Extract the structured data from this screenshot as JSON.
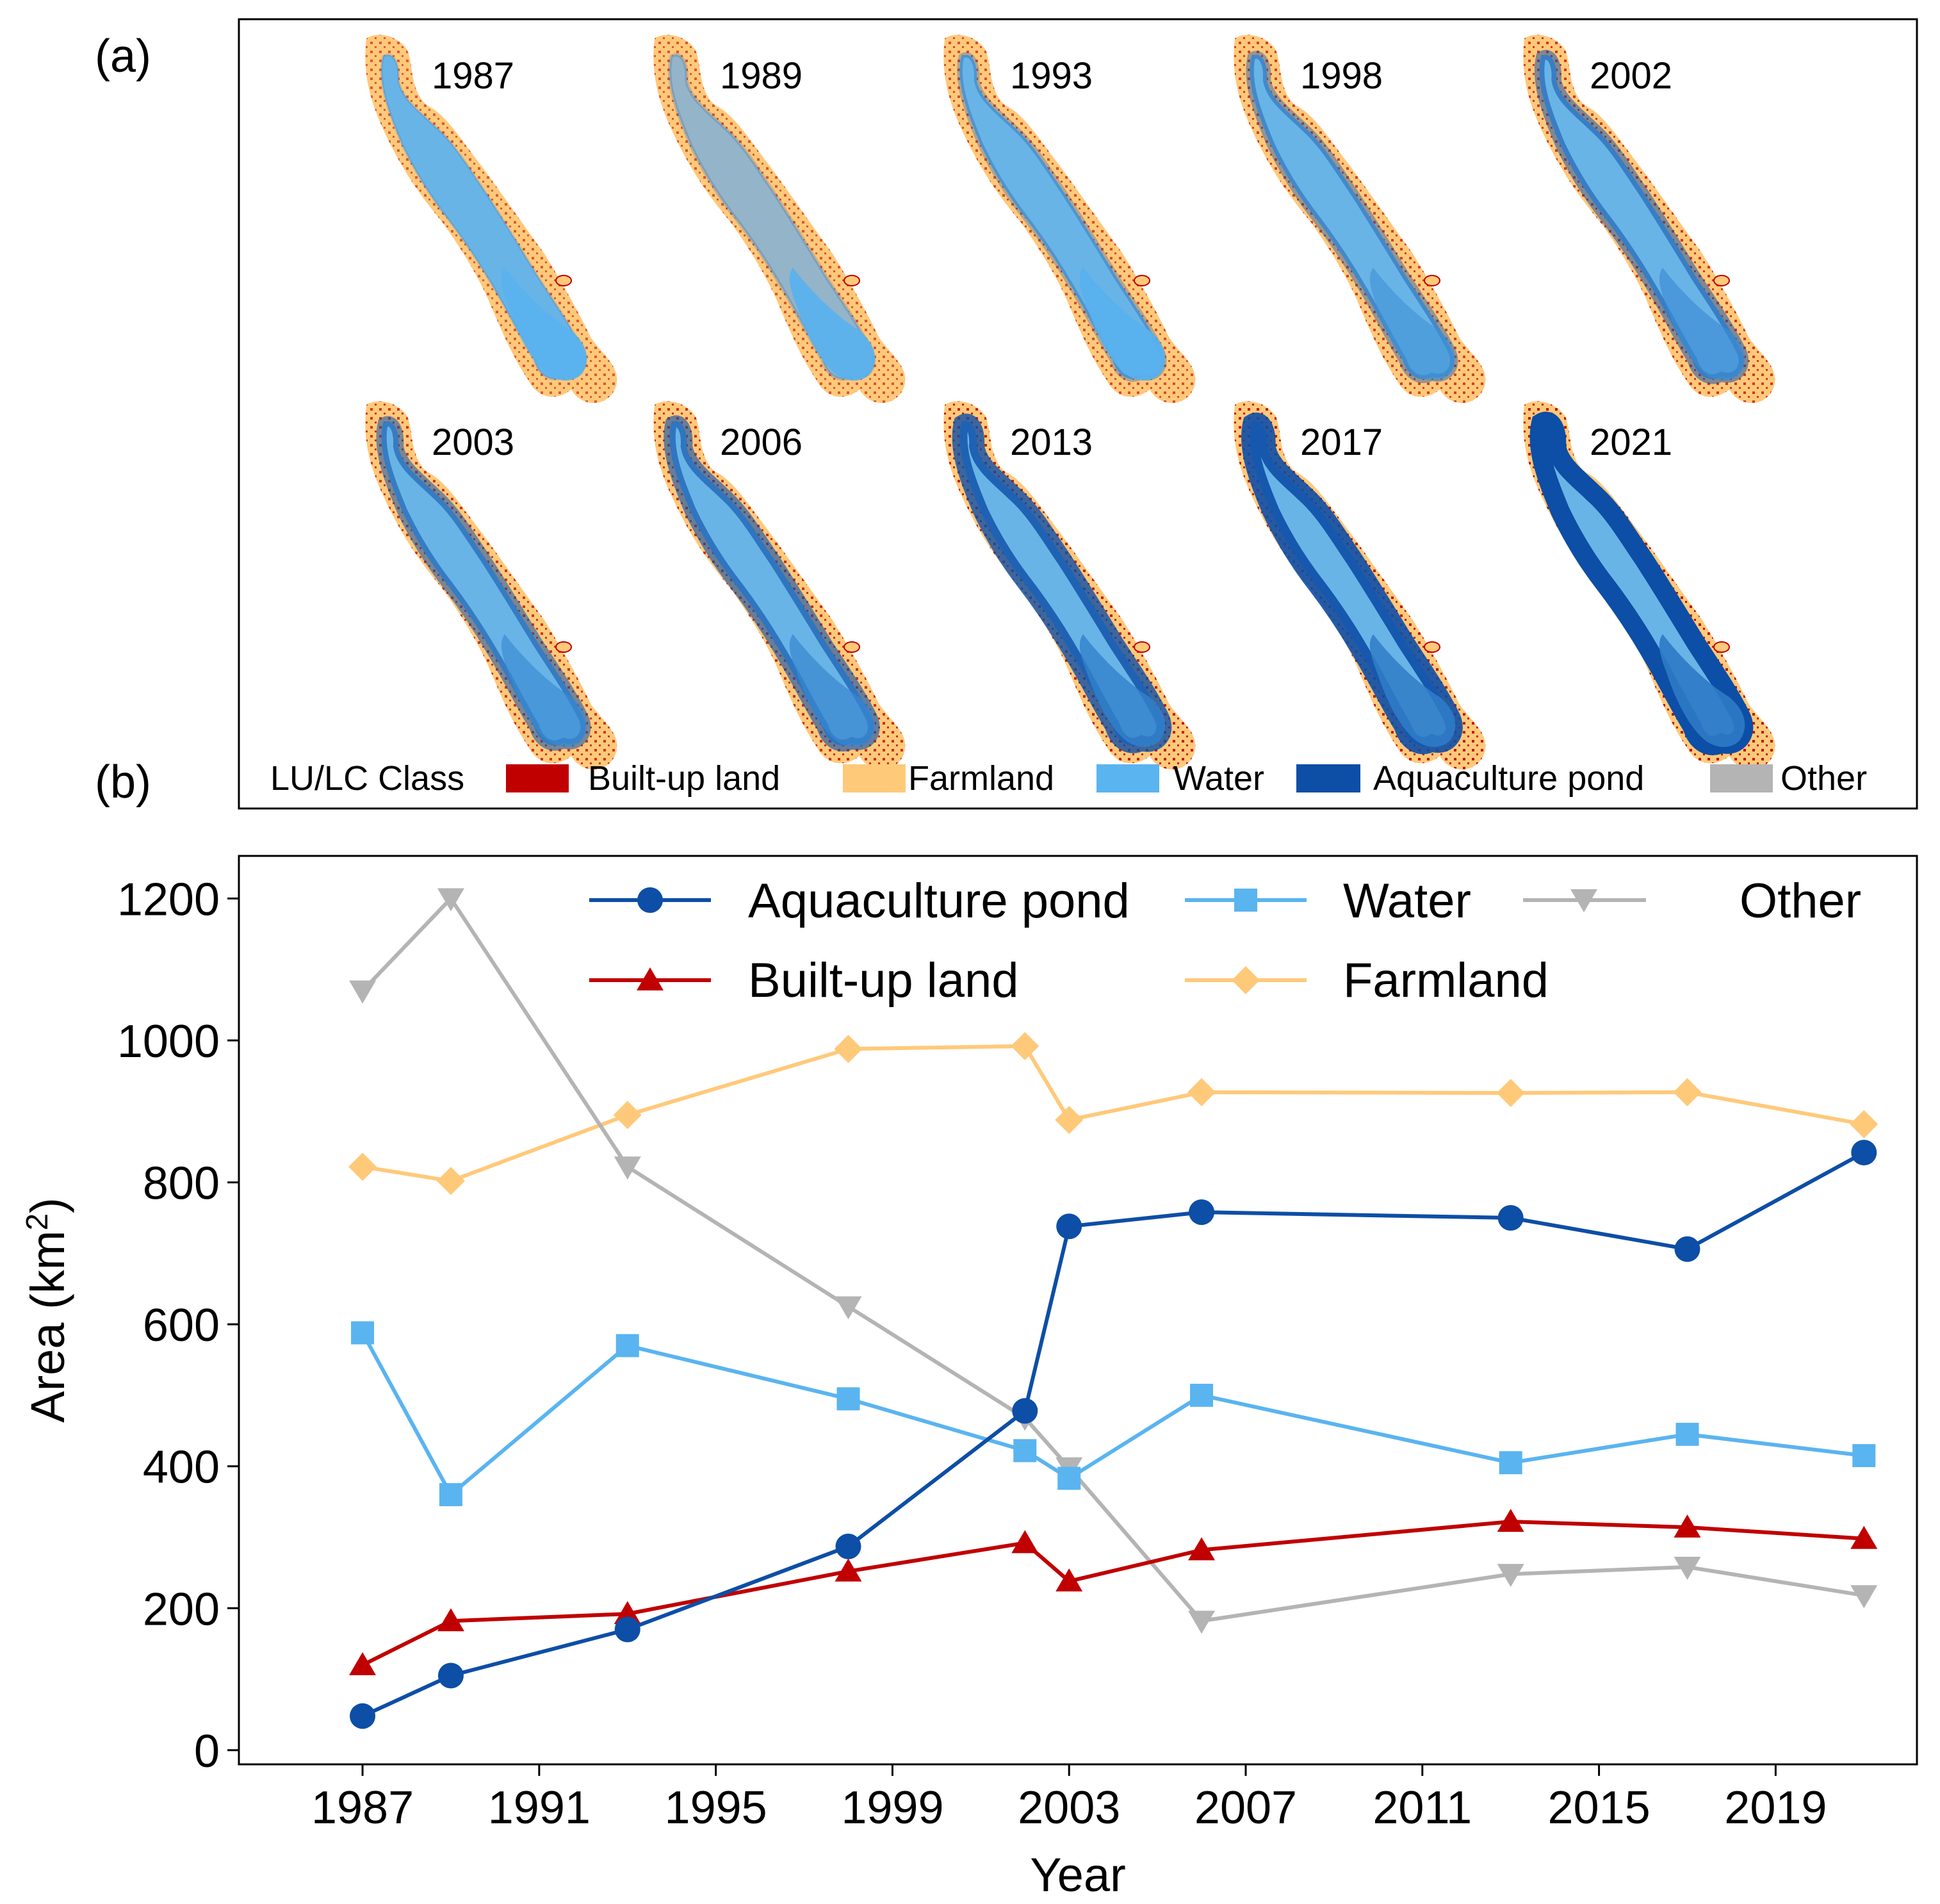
{
  "panel_a": {
    "label": "(a)",
    "years_row1": [
      "1987",
      "1989",
      "1993",
      "1998",
      "2002"
    ],
    "years_row2": [
      "2003",
      "2006",
      "2013",
      "2017",
      "2021"
    ],
    "legend_title": "LU/LC Class",
    "classes": [
      {
        "name": "Built-up land",
        "color": "#c00000"
      },
      {
        "name": "Farmland",
        "color": "#ffc97a"
      },
      {
        "name": "Water",
        "color": "#5ab4f0"
      },
      {
        "name": "Aquaculture pond",
        "color": "#0d4ea6"
      },
      {
        "name": "Other",
        "color": "#b4b4b4"
      }
    ],
    "map_colors": {
      "other": "#b4b4b4",
      "farmland": "#ffc97a",
      "water": "#5ab4f0",
      "pond": "#0d4ea6",
      "built": "#c00000"
    }
  },
  "chart_data": {
    "panel_label": "(b)",
    "type": "line",
    "x": [
      1987,
      1989,
      1993,
      1998,
      2002,
      2003,
      2006,
      2013,
      2017,
      2021
    ],
    "xlabel": "Year",
    "ylabel": "Area (km",
    "ylabel_sup": "2",
    "ylabel_close": ")",
    "xlim": [
      1984.2,
      2022.2
    ],
    "ylim": [
      -20,
      1260
    ],
    "xticks": [
      1987,
      1991,
      1995,
      1999,
      2003,
      2007,
      2011,
      2015,
      2019
    ],
    "xtick_labels": [
      "1987",
      "1991",
      "1995",
      "1999",
      "2003",
      "2007",
      "2011",
      "2015",
      "2019"
    ],
    "yticks": [
      0,
      200,
      400,
      600,
      800,
      1000,
      1200
    ],
    "ytick_labels": [
      "0",
      "200",
      "400",
      "600",
      "800",
      "1000",
      "1200"
    ],
    "grid": false,
    "legend_position": "top-right",
    "series": [
      {
        "name": "Aquaculture pond",
        "color": "#0d4ea6",
        "marker": "circle",
        "values": [
          48,
          105,
          170,
          287,
          478,
          738,
          758,
          750,
          706,
          842
        ]
      },
      {
        "name": "Water",
        "color": "#5ab4f0",
        "marker": "square",
        "values": [
          588,
          360,
          570,
          495,
          422,
          383,
          500,
          405,
          445,
          415
        ]
      },
      {
        "name": "Other",
        "color": "#b4b4b4",
        "marker": "triangle-down",
        "values": [
          1070,
          1200,
          822,
          625,
          468,
          398,
          182,
          248,
          258,
          218
        ]
      },
      {
        "name": "Built-up land",
        "color": "#c00000",
        "marker": "triangle-up",
        "values": [
          120,
          182,
          192,
          252,
          292,
          238,
          282,
          322,
          314,
          298
        ]
      },
      {
        "name": "Farmland",
        "color": "#ffc97a",
        "marker": "diamond",
        "values": [
          822,
          802,
          895,
          988,
          992,
          888,
          927,
          926,
          927,
          882
        ]
      }
    ]
  }
}
